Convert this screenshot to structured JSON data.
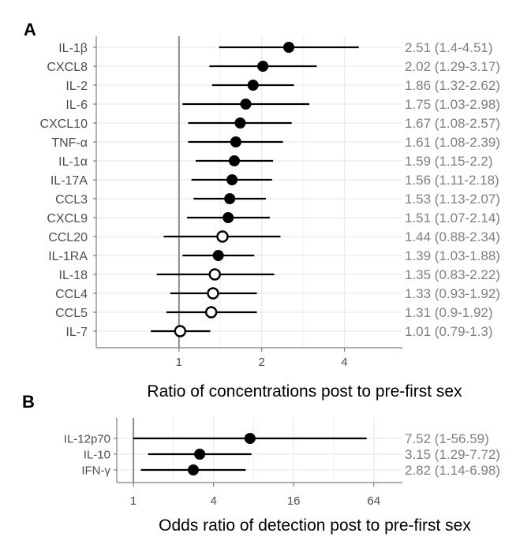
{
  "chart_data": [
    {
      "panel_label": "A",
      "type": "forest",
      "x_scale": "log2",
      "xlabel": "Ratio of concentrations post to pre-first sex",
      "xlim": [
        0.5,
        6.5
      ],
      "reference_line": 1,
      "ticks": [
        1,
        2,
        4
      ],
      "tick_labels": [
        "1",
        "2",
        "4"
      ],
      "grid": true,
      "rows": [
        {
          "label": "IL-1β",
          "estimate": 2.51,
          "lower": 1.4,
          "upper": 4.51,
          "filled": true,
          "text": "2.51 (1.4-4.51)"
        },
        {
          "label": "CXCL8",
          "estimate": 2.02,
          "lower": 1.29,
          "upper": 3.17,
          "filled": true,
          "text": "2.02 (1.29-3.17)"
        },
        {
          "label": "IL-2",
          "estimate": 1.86,
          "lower": 1.32,
          "upper": 2.62,
          "filled": true,
          "text": "1.86 (1.32-2.62)"
        },
        {
          "label": "IL-6",
          "estimate": 1.75,
          "lower": 1.03,
          "upper": 2.98,
          "filled": true,
          "text": "1.75 (1.03-2.98)"
        },
        {
          "label": "CXCL10",
          "estimate": 1.67,
          "lower": 1.08,
          "upper": 2.57,
          "filled": true,
          "text": "1.67 (1.08-2.57)"
        },
        {
          "label": "TNF-α",
          "estimate": 1.61,
          "lower": 1.08,
          "upper": 2.39,
          "filled": true,
          "text": "1.61 (1.08-2.39)"
        },
        {
          "label": "IL-1α",
          "estimate": 1.59,
          "lower": 1.15,
          "upper": 2.2,
          "filled": true,
          "text": "1.59 (1.15-2.2)"
        },
        {
          "label": "IL-17A",
          "estimate": 1.56,
          "lower": 1.11,
          "upper": 2.18,
          "filled": true,
          "text": "1.56 (1.11-2.18)"
        },
        {
          "label": "CCL3",
          "estimate": 1.53,
          "lower": 1.13,
          "upper": 2.07,
          "filled": true,
          "text": "1.53 (1.13-2.07)"
        },
        {
          "label": "CXCL9",
          "estimate": 1.51,
          "lower": 1.07,
          "upper": 2.14,
          "filled": true,
          "text": "1.51 (1.07-2.14)"
        },
        {
          "label": "CCL20",
          "estimate": 1.44,
          "lower": 0.88,
          "upper": 2.34,
          "filled": false,
          "text": "1.44 (0.88-2.34)"
        },
        {
          "label": "IL-1RA",
          "estimate": 1.39,
          "lower": 1.03,
          "upper": 1.88,
          "filled": true,
          "text": "1.39 (1.03-1.88)"
        },
        {
          "label": "IL-18",
          "estimate": 1.35,
          "lower": 0.83,
          "upper": 2.22,
          "filled": false,
          "text": "1.35 (0.83-2.22)"
        },
        {
          "label": "CCL4",
          "estimate": 1.33,
          "lower": 0.93,
          "upper": 1.92,
          "filled": false,
          "text": "1.33 (0.93-1.92)"
        },
        {
          "label": "CCL5",
          "estimate": 1.31,
          "lower": 0.9,
          "upper": 1.92,
          "filled": false,
          "text": "1.31 (0.9-1.92)"
        },
        {
          "label": "IL-7",
          "estimate": 1.01,
          "lower": 0.79,
          "upper": 1.3,
          "filled": false,
          "text": "1.01 (0.79-1.3)"
        }
      ]
    },
    {
      "panel_label": "B",
      "type": "forest",
      "x_scale": "log2",
      "xlabel": "Odds ratio of detection post to pre-first sex",
      "xlim": [
        0.75,
        105
      ],
      "reference_line": 1,
      "ticks": [
        1,
        4,
        16,
        64
      ],
      "tick_labels": [
        "1",
        "4",
        "16",
        "64"
      ],
      "grid": true,
      "rows": [
        {
          "label": "IL-12p70",
          "estimate": 7.52,
          "lower": 1,
          "upper": 56.59,
          "filled": true,
          "text": "7.52 (1-56.59)"
        },
        {
          "label": "IL-10",
          "estimate": 3.15,
          "lower": 1.29,
          "upper": 7.72,
          "filled": true,
          "text": "3.15 (1.29-7.72)"
        },
        {
          "label": "IFN-γ",
          "estimate": 2.82,
          "lower": 1.14,
          "upper": 6.98,
          "filled": true,
          "text": "2.82 (1.14-6.98)"
        }
      ]
    }
  ],
  "colors": {
    "grid": "#ebebeb",
    "reference_line": "#8c8c8c",
    "axis": "#7f7f7f",
    "estimate_text": "#7f7f7f",
    "label_text": "#4d4d4d",
    "mark": "#000000",
    "frame": "#d0d0d0"
  }
}
